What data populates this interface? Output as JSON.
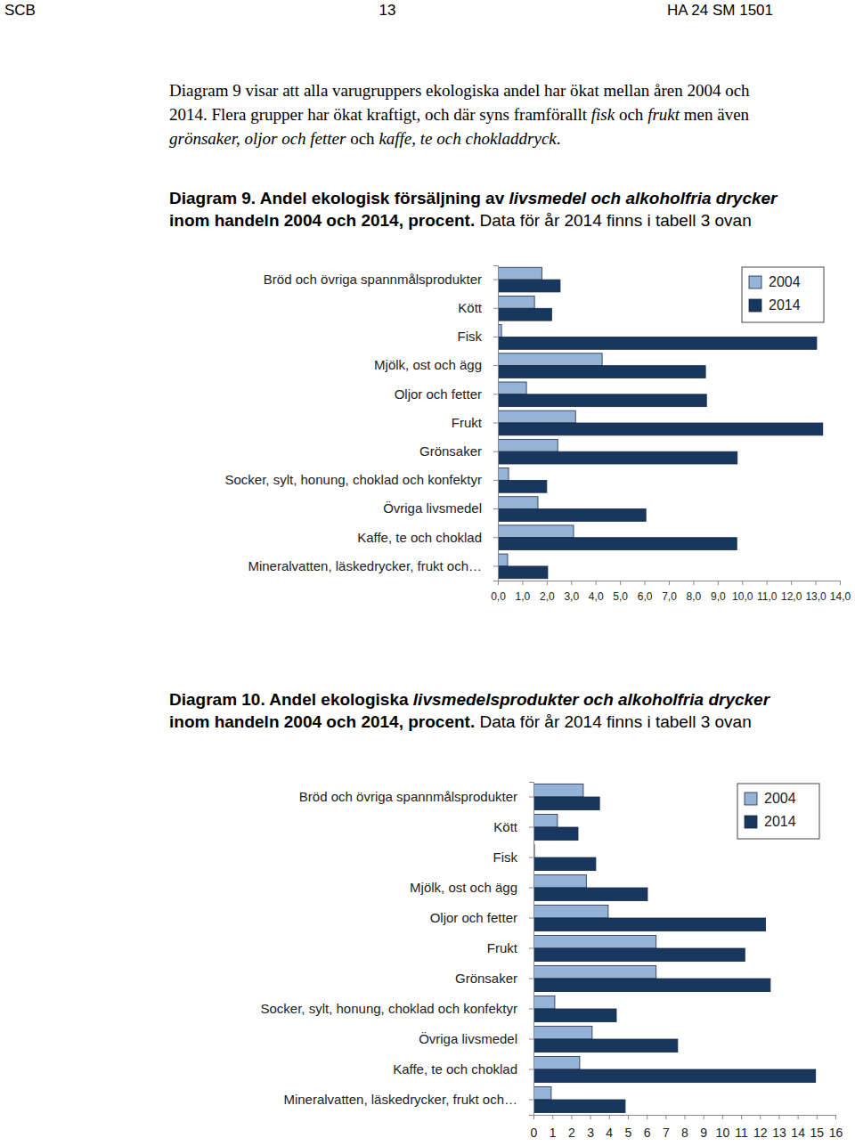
{
  "header": {
    "left": "SCB",
    "center": "13",
    "right": "HA 24 SM 1501"
  },
  "paragraph": [
    {
      "text": "Diagram 9 visar att alla varugruppers ekologiska andel har ökat mellan åren 2004 och 2014. Flera grupper har ökat kraftigt, och där syns framförallt ",
      "style": "normal"
    },
    {
      "text": "fisk",
      "style": "italic"
    },
    {
      "text": " och ",
      "style": "normal"
    },
    {
      "text": "frukt",
      "style": "italic"
    },
    {
      "text": " men även ",
      "style": "normal"
    },
    {
      "text": "grönsaker, oljor och fetter",
      "style": "italic"
    },
    {
      "text": " och ",
      "style": "normal"
    },
    {
      "text": "kaffe, te och chokladdryck",
      "style": "italic"
    },
    {
      "text": ".",
      "style": "normal"
    }
  ],
  "chart_data": [
    {
      "type": "bar",
      "orientation": "horizontal",
      "title": [
        {
          "text": "Diagram 9. Andel ekologisk försäljning av ",
          "style": "bold"
        },
        {
          "text": "livsmedel och alkoholfria drycker",
          "style": "bold italic"
        },
        {
          "text": " inom handeln 2004 och 2014, procent.",
          "style": "bold"
        },
        {
          "text": " Data för år 2014 finns i tabell 3 ovan",
          "style": "normal"
        }
      ],
      "categories": [
        "Bröd och övriga spannmålsprodukter",
        "Kött",
        "Fisk",
        "Mjölk, ost och ägg",
        "Oljor och fetter",
        "Frukt",
        "Grönsaker",
        "Socker, sylt, honung, choklad och konfektyr",
        "Övriga livsmedel",
        "Kaffe, te och choklad",
        "Mineralvatten, läskedrycker, frukt och…"
      ],
      "series": [
        {
          "name": "2004",
          "color": "#95b3d7",
          "values": [
            1.8,
            1.5,
            0.15,
            4.27,
            1.17,
            3.18,
            2.45,
            0.44,
            1.64,
            3.1,
            0.4
          ]
        },
        {
          "name": "2014",
          "color": "#17375e",
          "values": [
            2.55,
            2.2,
            13.05,
            8.5,
            8.54,
            13.3,
            9.8,
            2.0,
            6.06,
            9.78,
            2.04
          ]
        }
      ],
      "xlim": [
        0,
        14
      ],
      "xticks": [
        {
          "value": 0,
          "label": "0,0"
        },
        {
          "value": 1,
          "label": "1,0"
        },
        {
          "value": 2,
          "label": "2,0"
        },
        {
          "value": 3,
          "label": "3,0"
        },
        {
          "value": 4,
          "label": "4,0"
        },
        {
          "value": 5,
          "label": "5,0"
        },
        {
          "value": 6,
          "label": "6,0"
        },
        {
          "value": 7,
          "label": "7,0"
        },
        {
          "value": 8,
          "label": "8,0"
        },
        {
          "value": 9,
          "label": "9,0"
        },
        {
          "value": 10,
          "label": "10,0"
        },
        {
          "value": 11,
          "label": "11,0"
        },
        {
          "value": 12,
          "label": "12,0"
        },
        {
          "value": 13,
          "label": "13,0"
        },
        {
          "value": 14,
          "label": "14,0"
        }
      ],
      "grid": false,
      "legend": "upper right"
    },
    {
      "type": "bar",
      "orientation": "horizontal",
      "title": [
        {
          "text": "Diagram 10. Andel ekologiska ",
          "style": "bold"
        },
        {
          "text": "livsmedelsprodukter och alkoholfria drycker",
          "style": "bold italic"
        },
        {
          "text": " inom handeln 2004 och 2014, procent.",
          "style": "bold"
        },
        {
          "text": " Data för år 2014 finns i tabell 3 ovan",
          "style": "normal"
        }
      ],
      "categories": [
        "Bröd och övriga spannmålsprodukter",
        "Kött",
        "Fisk",
        "Mjölk, ost och ägg",
        "Oljor och fetter",
        "Frukt",
        "Grönsaker",
        "Socker, sylt, honung, choklad och konfektyr",
        "Övriga livsmedel",
        "Kaffe, te och choklad",
        "Mineralvatten, läskedrycker, frukt och…"
      ],
      "series": [
        {
          "name": "2004",
          "color": "#95b3d7",
          "values": [
            2.64,
            1.27,
            0.05,
            2.8,
            3.96,
            6.5,
            6.5,
            1.13,
            3.11,
            2.45,
            0.94
          ]
        },
        {
          "name": "2014",
          "color": "#17375e",
          "values": [
            3.5,
            2.36,
            3.3,
            6.04,
            12.3,
            11.2,
            12.55,
            4.39,
            7.64,
            14.95,
            4.86
          ]
        }
      ],
      "xlim": [
        0,
        16
      ],
      "xticks": [
        0,
        1,
        2,
        3,
        4,
        5,
        6,
        7,
        8,
        9,
        10,
        11,
        12,
        13,
        14,
        15,
        16
      ],
      "grid": false,
      "legend": "upper right"
    }
  ]
}
